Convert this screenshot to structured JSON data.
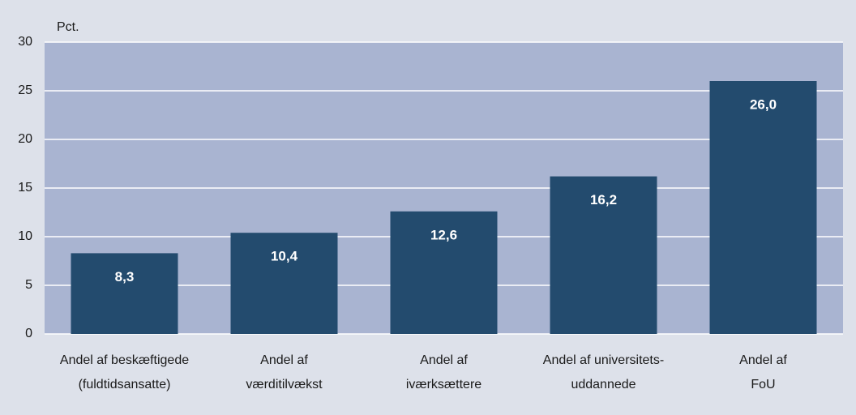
{
  "chart_data": {
    "type": "bar",
    "y_label": "Pct.",
    "categories": [
      "Andel af beskæftigede\n(fuldtidsansatte)",
      "Andel af\nværditilvækst",
      "Andel af\niværksættere",
      "Andel af universitets-\nuddannede",
      "Andel af\nFoU"
    ],
    "values": [
      8.3,
      10.4,
      12.6,
      16.2,
      26.0
    ],
    "value_labels": [
      "8,3",
      "10,4",
      "12,6",
      "16,2",
      "26,0"
    ],
    "color": "#234b6e",
    "ylim": [
      0,
      30
    ],
    "yticks": [
      0,
      5,
      10,
      15,
      20,
      25,
      30
    ],
    "grid": true
  }
}
